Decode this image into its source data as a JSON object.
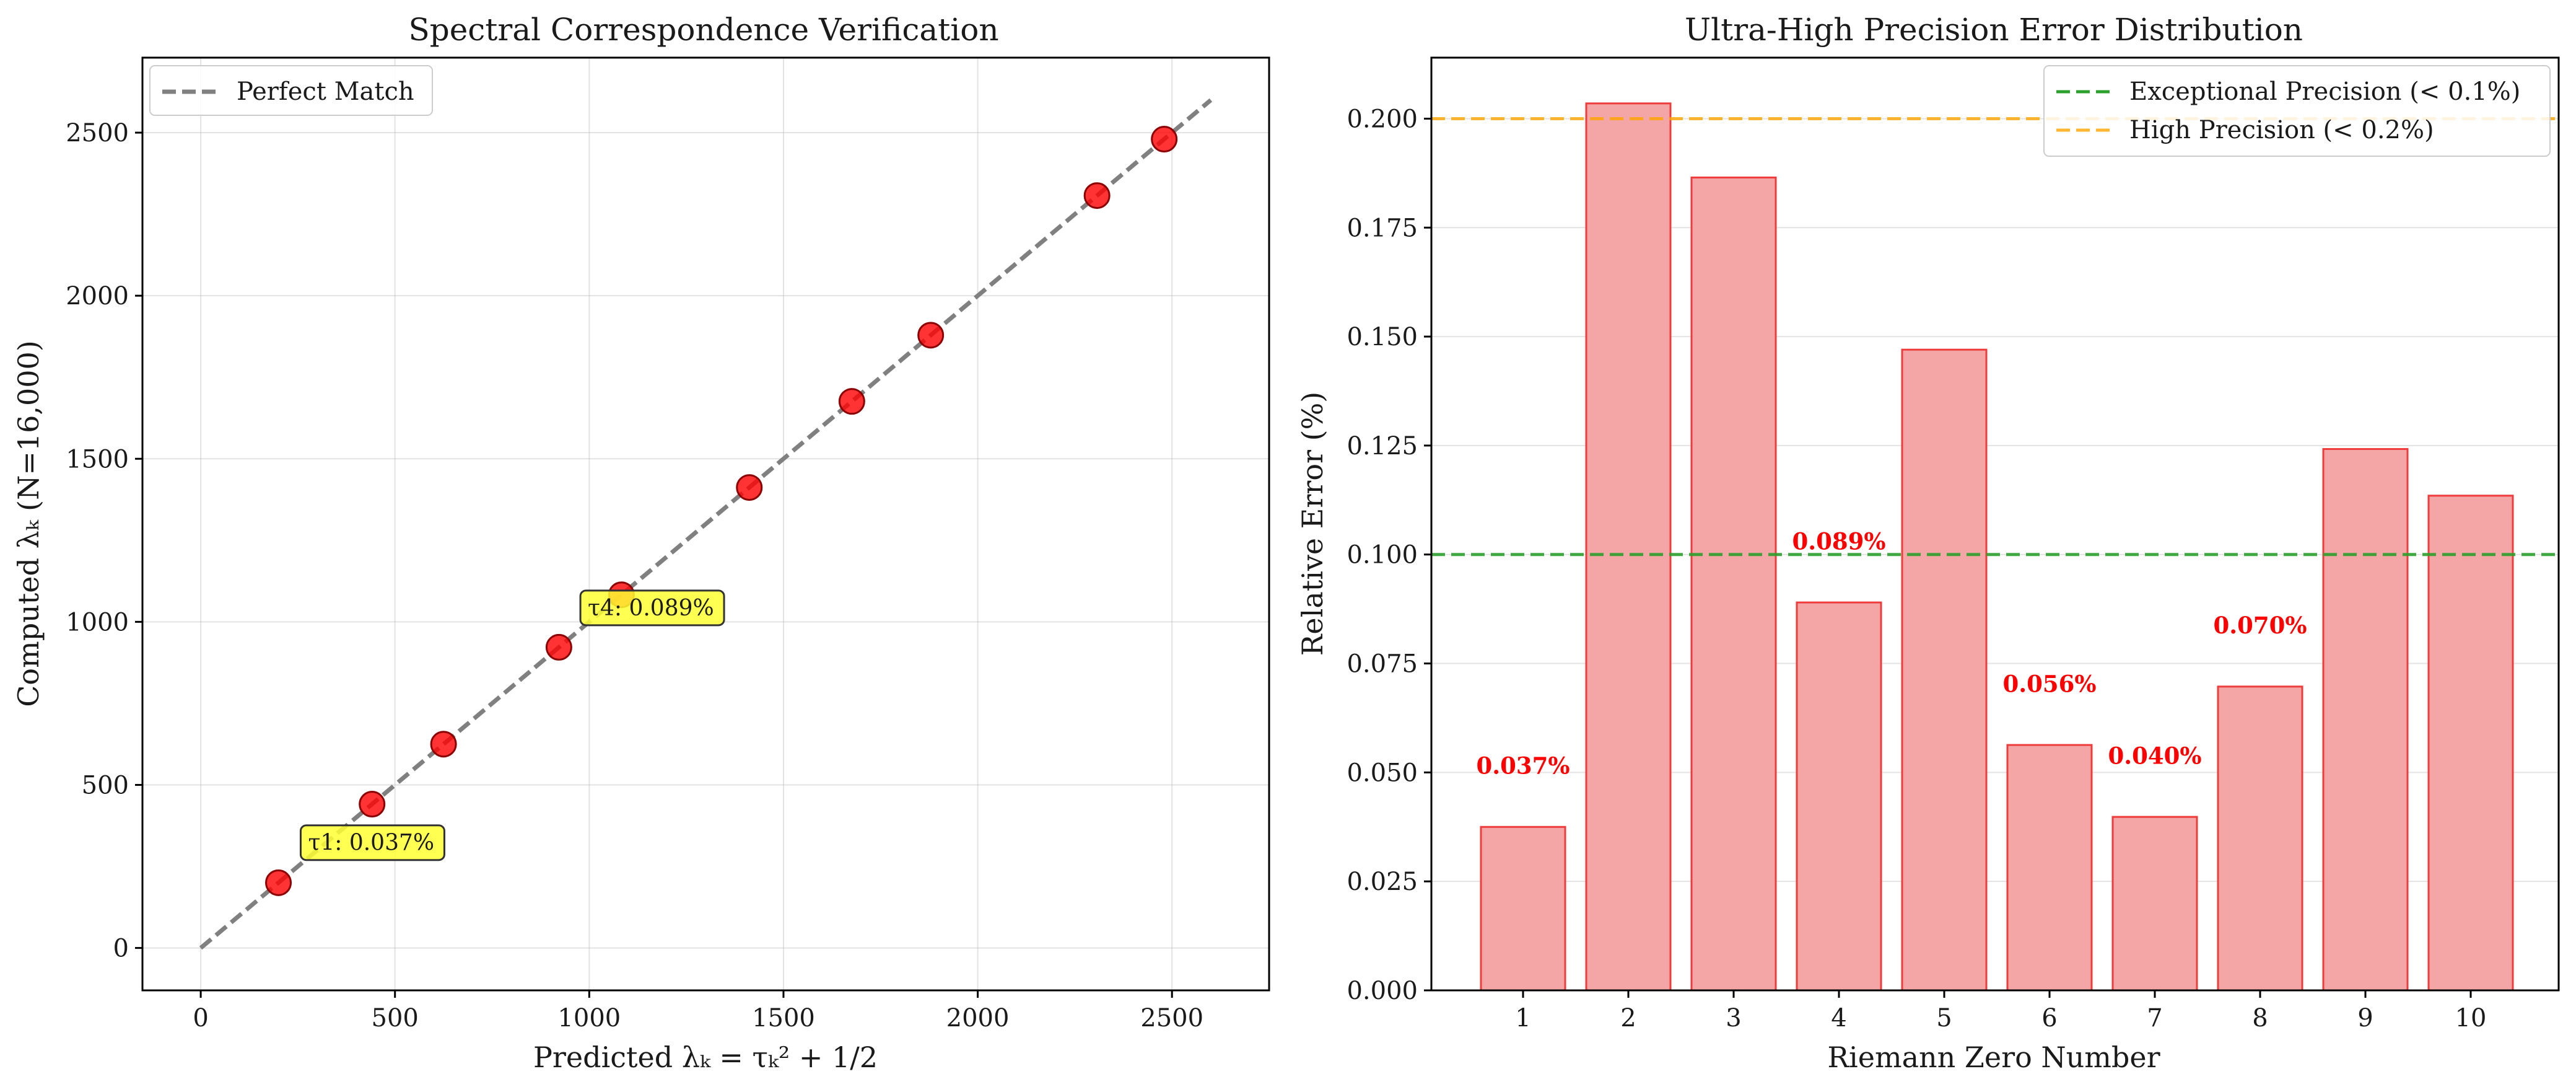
{
  "chart_data": [
    {
      "type": "scatter",
      "title": "Spectral Correspondence Verification",
      "xlabel": "Predicted λₖ = τₖ² + 1/2",
      "ylabel": "Computed λₖ (N=16,000)",
      "xlim": [
        -150,
        2750
      ],
      "ylim": [
        -130,
        2730
      ],
      "xticks": [
        0,
        500,
        1000,
        1500,
        2000,
        2500
      ],
      "yticks": [
        0,
        500,
        1000,
        1500,
        2000,
        2500
      ],
      "grid": true,
      "legend": {
        "position": "top-left",
        "entries": [
          "Perfect Match"
        ]
      },
      "reference_line": {
        "name": "Perfect Match",
        "x": [
          0,
          2600
        ],
        "y": [
          0,
          2600
        ],
        "color": "#808080",
        "style": "dashed"
      },
      "points": [
        {
          "x": 200,
          "y": 200
        },
        {
          "x": 441,
          "y": 441
        },
        {
          "x": 625,
          "y": 625
        },
        {
          "x": 922,
          "y": 922
        },
        {
          "x": 1083,
          "y": 1083
        },
        {
          "x": 1412,
          "y": 1412
        },
        {
          "x": 1676,
          "y": 1676
        },
        {
          "x": 1879,
          "y": 1879
        },
        {
          "x": 2307,
          "y": 2307
        },
        {
          "x": 2480,
          "y": 2480
        }
      ],
      "point_color": "#ff0000",
      "annotations": [
        {
          "text": "τ1: 0.037%",
          "x": 270,
          "y": 300
        },
        {
          "text": "τ4: 0.089%",
          "x": 990,
          "y": 1020
        }
      ],
      "annotation_fill": "#ffff33"
    },
    {
      "type": "bar",
      "title": "Ultra-High Precision Error Distribution",
      "xlabel": "Riemann Zero Number",
      "ylabel": "Relative Error (%)",
      "categories": [
        "1",
        "2",
        "3",
        "4",
        "5",
        "6",
        "7",
        "8",
        "9",
        "10"
      ],
      "values": [
        0.0375,
        0.2035,
        0.1865,
        0.089,
        0.147,
        0.0563,
        0.0398,
        0.0697,
        0.1242,
        0.1135
      ],
      "ylim": [
        0,
        0.214
      ],
      "yticks": [
        "0.000",
        "0.025",
        "0.050",
        "0.075",
        "0.100",
        "0.125",
        "0.150",
        "0.175",
        "0.200"
      ],
      "grid": true,
      "bar_fill": "#f4a6a6",
      "bar_edge": "#ee3b3b",
      "bar_labels": [
        {
          "index": 0,
          "text": "0.037%",
          "y": 0.0497
        },
        {
          "index": 3,
          "text": "0.089%",
          "y": 0.1012
        },
        {
          "index": 5,
          "text": "0.056%",
          "y": 0.0685
        },
        {
          "index": 6,
          "text": "0.040%",
          "y": 0.052
        },
        {
          "index": 7,
          "text": "0.070%",
          "y": 0.0819
        }
      ],
      "thresholds": [
        {
          "name": "Exceptional Precision (< 0.1%)",
          "y": 0.1,
          "color": "#2ca02c"
        },
        {
          "name": "High Precision (< 0.2%)",
          "y": 0.2,
          "color": "#ffa500"
        }
      ],
      "legend": {
        "position": "top-right",
        "entries": [
          "Exceptional Precision (< 0.1%)",
          "High Precision (< 0.2%)"
        ]
      }
    }
  ]
}
